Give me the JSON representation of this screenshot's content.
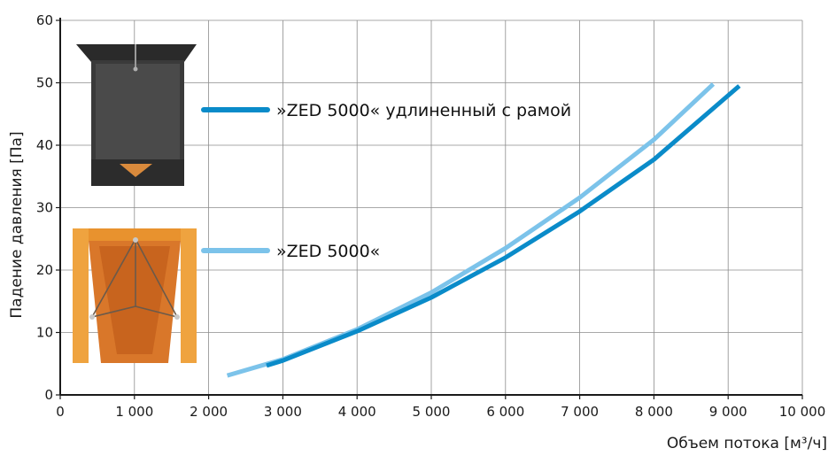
{
  "chart_data": {
    "type": "line",
    "title": "",
    "xlabel": "Объем потока [м³/ч]",
    "ylabel": "Падение давления [Па]",
    "xlim": [
      0,
      10000
    ],
    "ylim": [
      0,
      60
    ],
    "x_ticks": [
      0,
      1000,
      2000,
      3000,
      4000,
      5000,
      6000,
      7000,
      8000,
      9000,
      10000
    ],
    "x_tick_labels": [
      "0",
      "1 000",
      "2 000",
      "3 000",
      "4 000",
      "5 000",
      "6 000",
      "7 000",
      "8 000",
      "9 000",
      "10 000"
    ],
    "y_ticks": [
      0,
      10,
      20,
      30,
      40,
      50,
      60
    ],
    "y_tick_labels": [
      "0",
      "10",
      "20",
      "30",
      "40",
      "50",
      "60"
    ],
    "grid": true,
    "legend_position": "left, next to product photos",
    "series": [
      {
        "name": "»ZED 5000« удлиненный с рамой",
        "color": "#0a8bc9",
        "x": [
          2780,
          3000,
          4000,
          5000,
          6000,
          7000,
          8000,
          9150
        ],
        "y": [
          4.7,
          5.5,
          10.2,
          15.6,
          22.0,
          29.4,
          37.7,
          49.5
        ]
      },
      {
        "name": "»ZED 5000«",
        "color": "#7cc3ea",
        "x": [
          2250,
          3000,
          4000,
          5000,
          6000,
          7000,
          8000,
          8800
        ],
        "y": [
          3.1,
          5.7,
          10.5,
          16.4,
          23.5,
          31.6,
          40.9,
          49.8
        ]
      }
    ],
    "images": [
      {
        "icon": "dark-housing-photo",
        "series": "»ZED 5000« удлиненный с рамой"
      },
      {
        "icon": "orange-housing-photo",
        "series": "»ZED 5000«"
      }
    ]
  }
}
